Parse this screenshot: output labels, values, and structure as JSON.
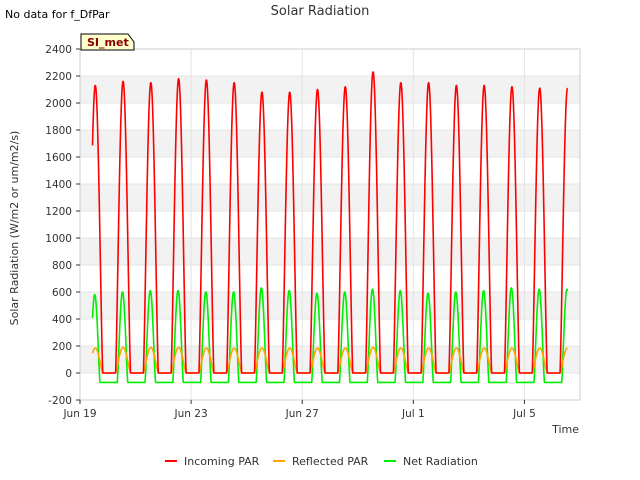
{
  "no_data_text": "No data for f_DfPar",
  "badge_label": "SI_met",
  "chart_data": {
    "type": "line",
    "title": "Solar Radiation",
    "xlabel": "Time",
    "ylabel": "Solar Radiation (W/m2 or um/m2/s)",
    "ylim": [
      -200,
      2400
    ],
    "yticks": [
      -200,
      0,
      200,
      400,
      600,
      800,
      1000,
      1200,
      1400,
      1600,
      1800,
      2000,
      2200,
      2400
    ],
    "xlim": [
      "2023-06-19",
      "2023-07-07"
    ],
    "xticks": [
      {
        "date": "2023-06-19",
        "label": "Jun 19"
      },
      {
        "date": "2023-06-23",
        "label": "Jun 23"
      },
      {
        "date": "2023-06-27",
        "label": "Jun 27"
      },
      {
        "date": "2023-07-01",
        "label": "Jul 1"
      },
      {
        "date": "2023-07-05",
        "label": "Jul 5"
      }
    ],
    "grid": true,
    "legend": "bottom",
    "days": [
      "2023-06-19",
      "2023-06-20",
      "2023-06-21",
      "2023-06-22",
      "2023-06-23",
      "2023-06-24",
      "2023-06-25",
      "2023-06-26",
      "2023-06-27",
      "2023-06-28",
      "2023-06-29",
      "2023-06-30",
      "2023-07-01",
      "2023-07-02",
      "2023-07-03",
      "2023-07-04",
      "2023-07-05",
      "2023-07-06"
    ],
    "series": [
      {
        "name": "Incoming PAR",
        "color": "#ff0000",
        "daily_peak": [
          2130,
          2160,
          2150,
          2180,
          2170,
          2150,
          2080,
          2080,
          2100,
          2120,
          2230,
          2150,
          2150,
          2130,
          2130,
          2120,
          2110,
          2110
        ]
      },
      {
        "name": "Reflected PAR",
        "color": "#ffa500",
        "daily_peak": [
          185,
          190,
          190,
          190,
          185,
          185,
          185,
          185,
          185,
          185,
          190,
          185,
          185,
          185,
          185,
          185,
          185,
          185
        ]
      },
      {
        "name": "Net Radiation",
        "color": "#00ee00",
        "daily_peak": [
          580,
          600,
          610,
          610,
          600,
          600,
          630,
          610,
          590,
          600,
          620,
          610,
          590,
          600,
          610,
          630,
          620,
          620
        ],
        "night_value": -70
      }
    ]
  }
}
